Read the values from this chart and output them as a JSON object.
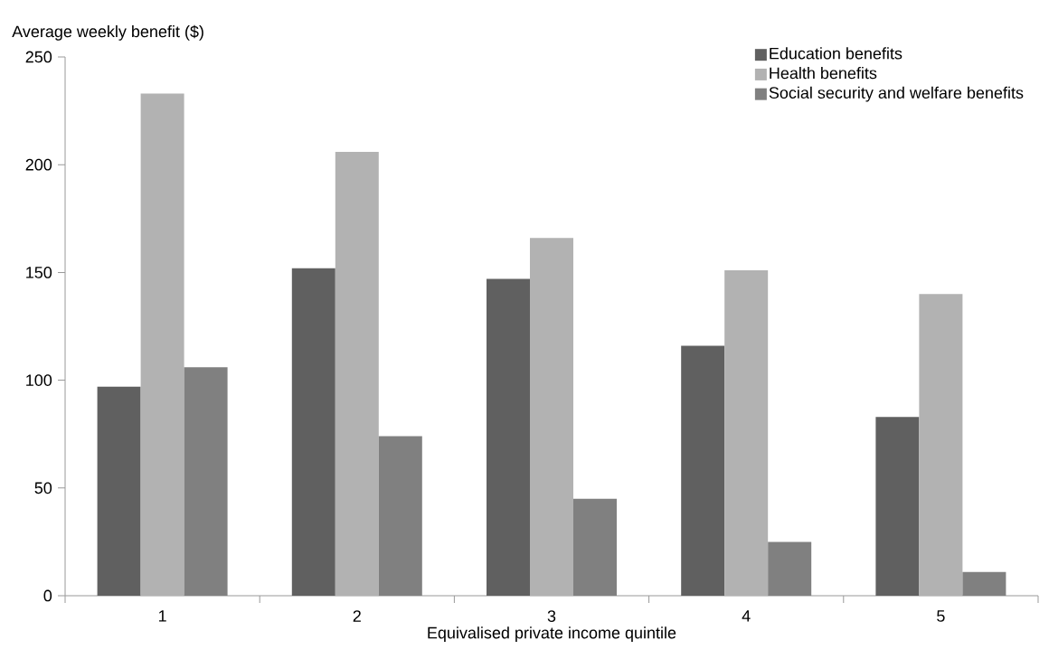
{
  "chart_data": {
    "type": "bar",
    "xlabel": "Equivalised private income quintile",
    "ylabel": "Average weekly benefit ($)",
    "categories": [
      "1",
      "2",
      "3",
      "4",
      "5"
    ],
    "series": [
      {
        "name": "Education benefits",
        "color": "#606060",
        "values": [
          97,
          152,
          147,
          116,
          83
        ]
      },
      {
        "name": "Health benefits",
        "color": "#b2b2b2",
        "values": [
          233,
          206,
          166,
          151,
          140
        ]
      },
      {
        "name": "Social security and welfare benefits",
        "color": "#808080",
        "values": [
          106,
          74,
          45,
          25,
          11
        ]
      }
    ],
    "ylim": [
      0,
      250
    ],
    "yticks": [
      0,
      50,
      100,
      150,
      200,
      250
    ],
    "grid": false,
    "legend": "top right"
  }
}
